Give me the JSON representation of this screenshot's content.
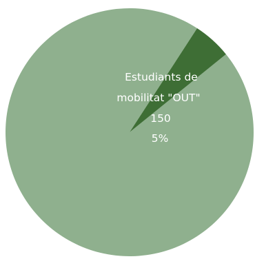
{
  "chart_data": {
    "type": "pie",
    "title": "",
    "slices": [
      {
        "label": "",
        "value": 2850,
        "percent": "95%",
        "color": "#8fb08e"
      },
      {
        "label": "Estudiants de mobilitat \"OUT\"",
        "label_lines": [
          "Estudiants de",
          "mobilitat \"OUT\""
        ],
        "value": 150,
        "value_text": "150",
        "percent": "5%",
        "color": "#3e6e35"
      }
    ],
    "legend": "none",
    "data_labels": "inside"
  }
}
